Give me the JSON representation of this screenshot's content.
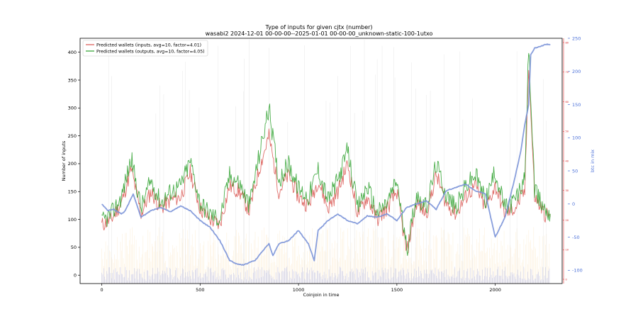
{
  "chart_data": {
    "type": "line",
    "title": "Type of inputs for given cjtx (number)",
    "subtitle": "wasabi2 2024-12-01 00-00-00--2025-01-01 00-00-00_unknown-static-100-1utxo",
    "xlabel": "Coinjoin in time",
    "ylabel": "Number of inputs",
    "y2label": "btc in mix",
    "xlim": [
      -110,
      2340
    ],
    "ylim": [
      -15,
      425
    ],
    "y2lim": [
      -120,
      250
    ],
    "xticks": [
      "0",
      "500",
      "1000",
      "1500",
      "2000"
    ],
    "yticks": [
      "0",
      "50",
      "100",
      "150",
      "200",
      "250",
      "300",
      "350",
      "400"
    ],
    "y2ticks": [
      "-100",
      "-50",
      "0",
      "50",
      "100",
      "150",
      "200",
      "250"
    ],
    "y3ticks": [
      "0",
      "10",
      "20",
      "30",
      "40",
      "50",
      "60",
      "70",
      "80"
    ],
    "legend_location": "top-left",
    "grid": false,
    "colors": {
      "inputs": "#d9534f",
      "outputs": "#2ca02c",
      "btc": "#7b93d8",
      "secondary_axis": "#d62728",
      "background_bars_orange": "#f5b041",
      "background_bars_blue": "#6c7fe0"
    },
    "series": [
      {
        "name": "Predicted wallets (inputs, avg=10, factor=4.01)",
        "axis": "left",
        "x": [
          0,
          50,
          100,
          150,
          200,
          250,
          300,
          350,
          400,
          450,
          500,
          550,
          600,
          650,
          700,
          750,
          800,
          850,
          900,
          950,
          1000,
          1050,
          1100,
          1150,
          1200,
          1250,
          1300,
          1350,
          1400,
          1450,
          1500,
          1550,
          1600,
          1650,
          1700,
          1750,
          1800,
          1850,
          1900,
          1950,
          2000,
          2050,
          2100,
          2150,
          2170,
          2200,
          2250,
          2280
        ],
        "values": [
          90,
          100,
          130,
          190,
          110,
          150,
          120,
          135,
          140,
          185,
          120,
          100,
          90,
          160,
          150,
          115,
          190,
          250,
          150,
          180,
          140,
          125,
          170,
          120,
          150,
          200,
          110,
          140,
          100,
          120,
          150,
          40,
          130,
          110,
          180,
          130,
          110,
          140,
          160,
          120,
          160,
          110,
          120,
          150,
          380,
          140,
          110,
          105
        ]
      },
      {
        "name": "Predicted wallets (outputs, avg=10, factor=4.05)",
        "axis": "left",
        "x": [
          0,
          50,
          100,
          150,
          200,
          250,
          300,
          350,
          400,
          450,
          500,
          550,
          600,
          650,
          700,
          750,
          800,
          850,
          900,
          950,
          1000,
          1050,
          1100,
          1150,
          1200,
          1250,
          1300,
          1350,
          1400,
          1450,
          1500,
          1550,
          1600,
          1650,
          1700,
          1750,
          1800,
          1850,
          1900,
          1950,
          2000,
          2050,
          2100,
          2150,
          2170,
          2200,
          2250,
          2280
        ],
        "values": [
          95,
          110,
          140,
          210,
          120,
          170,
          130,
          150,
          160,
          205,
          130,
          110,
          100,
          180,
          165,
          125,
          215,
          300,
          170,
          200,
          155,
          140,
          190,
          135,
          170,
          225,
          120,
          160,
          110,
          130,
          170,
          45,
          145,
          120,
          200,
          145,
          120,
          160,
          180,
          135,
          185,
          120,
          135,
          170,
          410,
          150,
          120,
          110
        ]
      },
      {
        "name": "",
        "axis": "right",
        "x": [
          0,
          30,
          60,
          100,
          120,
          160,
          200,
          250,
          300,
          350,
          400,
          450,
          500,
          550,
          600,
          650,
          680,
          720,
          780,
          820,
          850,
          870,
          900,
          950,
          1000,
          1050,
          1080,
          1100,
          1150,
          1200,
          1250,
          1300,
          1350,
          1400,
          1450,
          1500,
          1550,
          1600,
          1650,
          1700,
          1750,
          1800,
          1850,
          1900,
          1950,
          2000,
          2050,
          2100,
          2130,
          2150,
          2170,
          2180,
          2200,
          2230,
          2260,
          2280
        ],
        "values": [
          0,
          -10,
          -8,
          -15,
          -10,
          15,
          -20,
          -10,
          -5,
          -12,
          -3,
          -10,
          -25,
          -35,
          -55,
          -85,
          -90,
          -92,
          -85,
          -70,
          -60,
          -78,
          -60,
          -55,
          -40,
          -60,
          -85,
          -40,
          -25,
          -15,
          -25,
          -30,
          -18,
          -20,
          -15,
          -25,
          -5,
          0,
          5,
          -8,
          20,
          25,
          30,
          20,
          15,
          -50,
          -20,
          40,
          80,
          120,
          150,
          225,
          235,
          238,
          241,
          240
        ]
      }
    ]
  }
}
